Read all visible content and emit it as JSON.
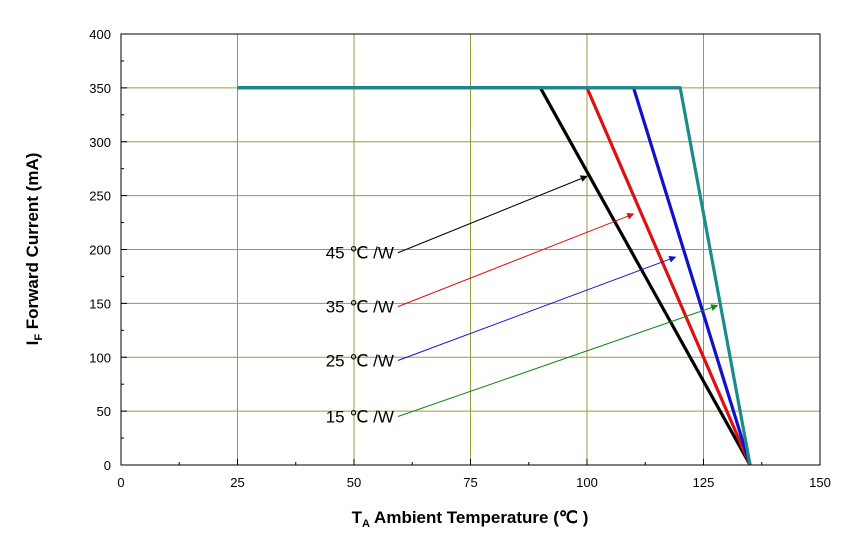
{
  "chart_data": {
    "type": "line",
    "xlabel": {
      "main": "T",
      "sub": "A",
      "rest": " Ambient Temperature (℃ )"
    },
    "ylabel": {
      "main": "I",
      "sub": "F",
      "rest": " Forward Current (mA)"
    },
    "xlim": [
      0,
      150
    ],
    "ylim": [
      0,
      400
    ],
    "xticks": [
      0,
      25,
      50,
      75,
      100,
      125,
      150
    ],
    "yticks": [
      0,
      50,
      100,
      150,
      200,
      250,
      300,
      350,
      400
    ],
    "grid": true,
    "baseline": {
      "x": [
        25,
        120
      ],
      "y": [
        350,
        350
      ],
      "color": "#1a8c8c"
    },
    "series": [
      {
        "label": "45 ℃ /W",
        "color": "#000000",
        "x": [
          25,
          90,
          135
        ],
        "y": [
          350,
          350,
          0
        ],
        "annotation": {
          "text_x": 59,
          "text_y": 197,
          "arrow_x": 100,
          "arrow_y": 268
        }
      },
      {
        "label": "35 ℃ /W",
        "color": "#dd1111",
        "x": [
          25,
          100,
          135
        ],
        "y": [
          350,
          350,
          0
        ],
        "annotation": {
          "text_x": 59,
          "text_y": 147,
          "arrow_x": 110,
          "arrow_y": 233
        }
      },
      {
        "label": "25 ℃ /W",
        "color": "#1111cc",
        "x": [
          25,
          110,
          135
        ],
        "y": [
          350,
          350,
          0
        ],
        "annotation": {
          "text_x": 59,
          "text_y": 97,
          "arrow_x": 119,
          "arrow_y": 193
        }
      },
      {
        "label": "15 ℃ /W",
        "color": "#1a8c8c",
        "x": [
          25,
          120,
          135
        ],
        "y": [
          350,
          350,
          0
        ],
        "annotation": {
          "text_x": 59,
          "text_y": 45,
          "arrow_x": 128,
          "arrow_y": 148
        },
        "arrow_color": "#11881a"
      }
    ]
  }
}
